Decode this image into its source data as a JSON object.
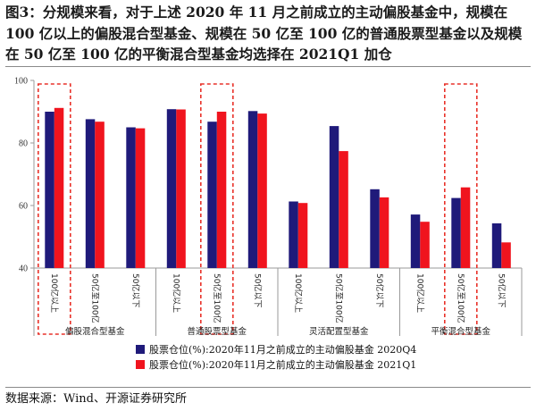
{
  "title": "图3：分规模来看，对于上述 2020 年 11 月之前成立的主动偏股基金中，规模在 100 亿以上的偏股混合型基金、规模在 50 亿至 100 亿的普通股票型基金以及规模在 50 亿至 100 亿的平衡混合型基金均选择在 2021Q1 加仓",
  "footnote": "数据来源：Wind、开源证券研究所",
  "colors": {
    "series_q4": "#1f1a7a",
    "series_q1": "#f0141e",
    "highlight": "#e8322a",
    "axis": "#9a9a9a"
  },
  "chart_data": {
    "type": "bar",
    "title": "",
    "xlabel": "",
    "ylabel": "",
    "ylim": [
      40,
      100
    ],
    "yticks": [
      40,
      60,
      80,
      100
    ],
    "grid": false,
    "legend_position": "bottom",
    "categories": [
      "100亿以上",
      "50亿至100亿",
      "50亿以下",
      "100亿以上",
      "50亿至100亿",
      "50亿以下",
      "100亿以上",
      "50亿至100亿",
      "50亿以下",
      "100亿以上",
      "50亿至100亿",
      "50亿以下"
    ],
    "groups": [
      {
        "label": "偏股混合型基金",
        "categories": [
          0,
          1,
          2
        ]
      },
      {
        "label": "普通股票型基金",
        "categories": [
          3,
          4,
          5
        ]
      },
      {
        "label": "灵活配置型基金",
        "categories": [
          6,
          7,
          8
        ]
      },
      {
        "label": "平衡混合型基金",
        "categories": [
          9,
          10,
          11
        ]
      }
    ],
    "series": [
      {
        "name": "股票仓位(%):2020年11月之前成立的主动偏股基金 2020Q4",
        "values": [
          90.0,
          87.6,
          85.0,
          90.8,
          86.8,
          90.2,
          61.3,
          85.4,
          65.2,
          57.1,
          62.4,
          54.3
        ]
      },
      {
        "name": "股票仓位(%):2020年11月之前成立的主动偏股基金 2021Q1",
        "values": [
          91.2,
          86.8,
          84.7,
          90.7,
          90.0,
          89.4,
          60.8,
          77.4,
          62.6,
          54.8,
          65.8,
          48.2
        ]
      }
    ],
    "highlighted_categories": [
      0,
      4,
      10
    ]
  }
}
